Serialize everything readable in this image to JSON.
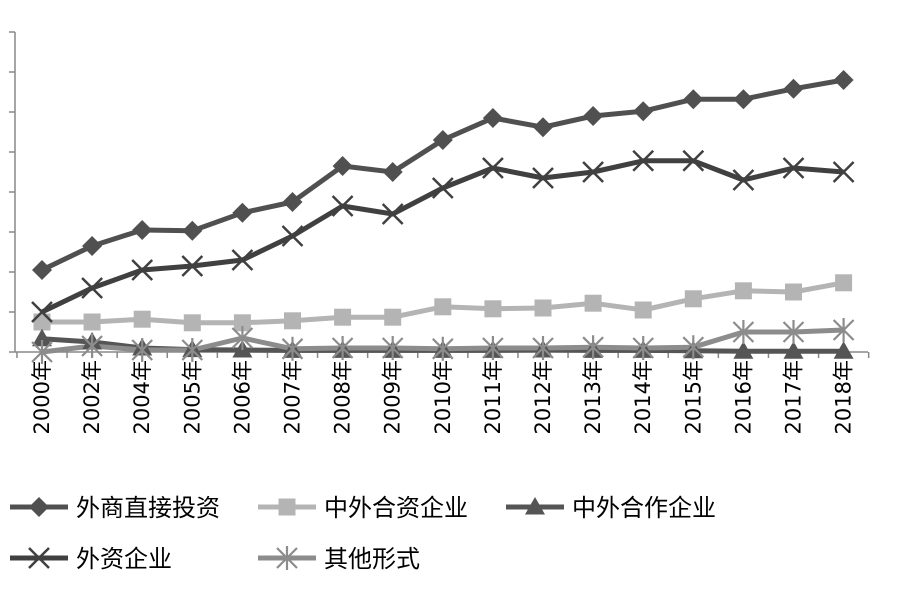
{
  "chart_data": {
    "type": "line",
    "categories": [
      "2000年",
      "2002年",
      "2004年",
      "2005年",
      "2006年",
      "2007年",
      "2008年",
      "2009年",
      "2010年",
      "2011年",
      "2012年",
      "2013年",
      "2014年",
      "2015年",
      "2016年",
      "2017年",
      "2018年"
    ],
    "ylim": [
      0,
      8
    ],
    "y_ticks_labeled": false,
    "grid": false,
    "legend_position": "bottom",
    "series": [
      {
        "name": "外商直接投资",
        "marker": "diamond",
        "color": "#505050",
        "values": [
          2.05,
          2.65,
          3.05,
          3.03,
          3.48,
          3.75,
          4.65,
          4.5,
          5.3,
          5.85,
          5.62,
          5.9,
          6.02,
          6.32,
          6.32,
          6.58,
          6.8
        ]
      },
      {
        "name": "中外合资企业",
        "marker": "square",
        "color": "#b4b4b4",
        "values": [
          0.75,
          0.75,
          0.82,
          0.73,
          0.73,
          0.78,
          0.87,
          0.87,
          1.13,
          1.08,
          1.1,
          1.22,
          1.05,
          1.33,
          1.53,
          1.5,
          1.73
        ]
      },
      {
        "name": "中外合作企业",
        "marker": "triangle",
        "color": "#555555",
        "values": [
          0.33,
          0.25,
          0.1,
          0.06,
          0.05,
          0.04,
          0.04,
          0.04,
          0.04,
          0.04,
          0.05,
          0.04,
          0.04,
          0.03,
          0.02,
          0.02,
          0.02
        ]
      },
      {
        "name": "外资企业",
        "marker": "x",
        "color": "#404040",
        "values": [
          1.0,
          1.6,
          2.05,
          2.15,
          2.3,
          2.9,
          3.65,
          3.45,
          4.1,
          4.6,
          4.35,
          4.5,
          4.78,
          4.78,
          4.3,
          4.6,
          4.5
        ]
      },
      {
        "name": "其他形式",
        "marker": "asterisk",
        "color": "#8c8c8c",
        "values": [
          0.0,
          0.15,
          0.05,
          0.05,
          0.35,
          0.08,
          0.1,
          0.1,
          0.08,
          0.1,
          0.1,
          0.12,
          0.1,
          0.12,
          0.5,
          0.5,
          0.55
        ]
      }
    ]
  }
}
